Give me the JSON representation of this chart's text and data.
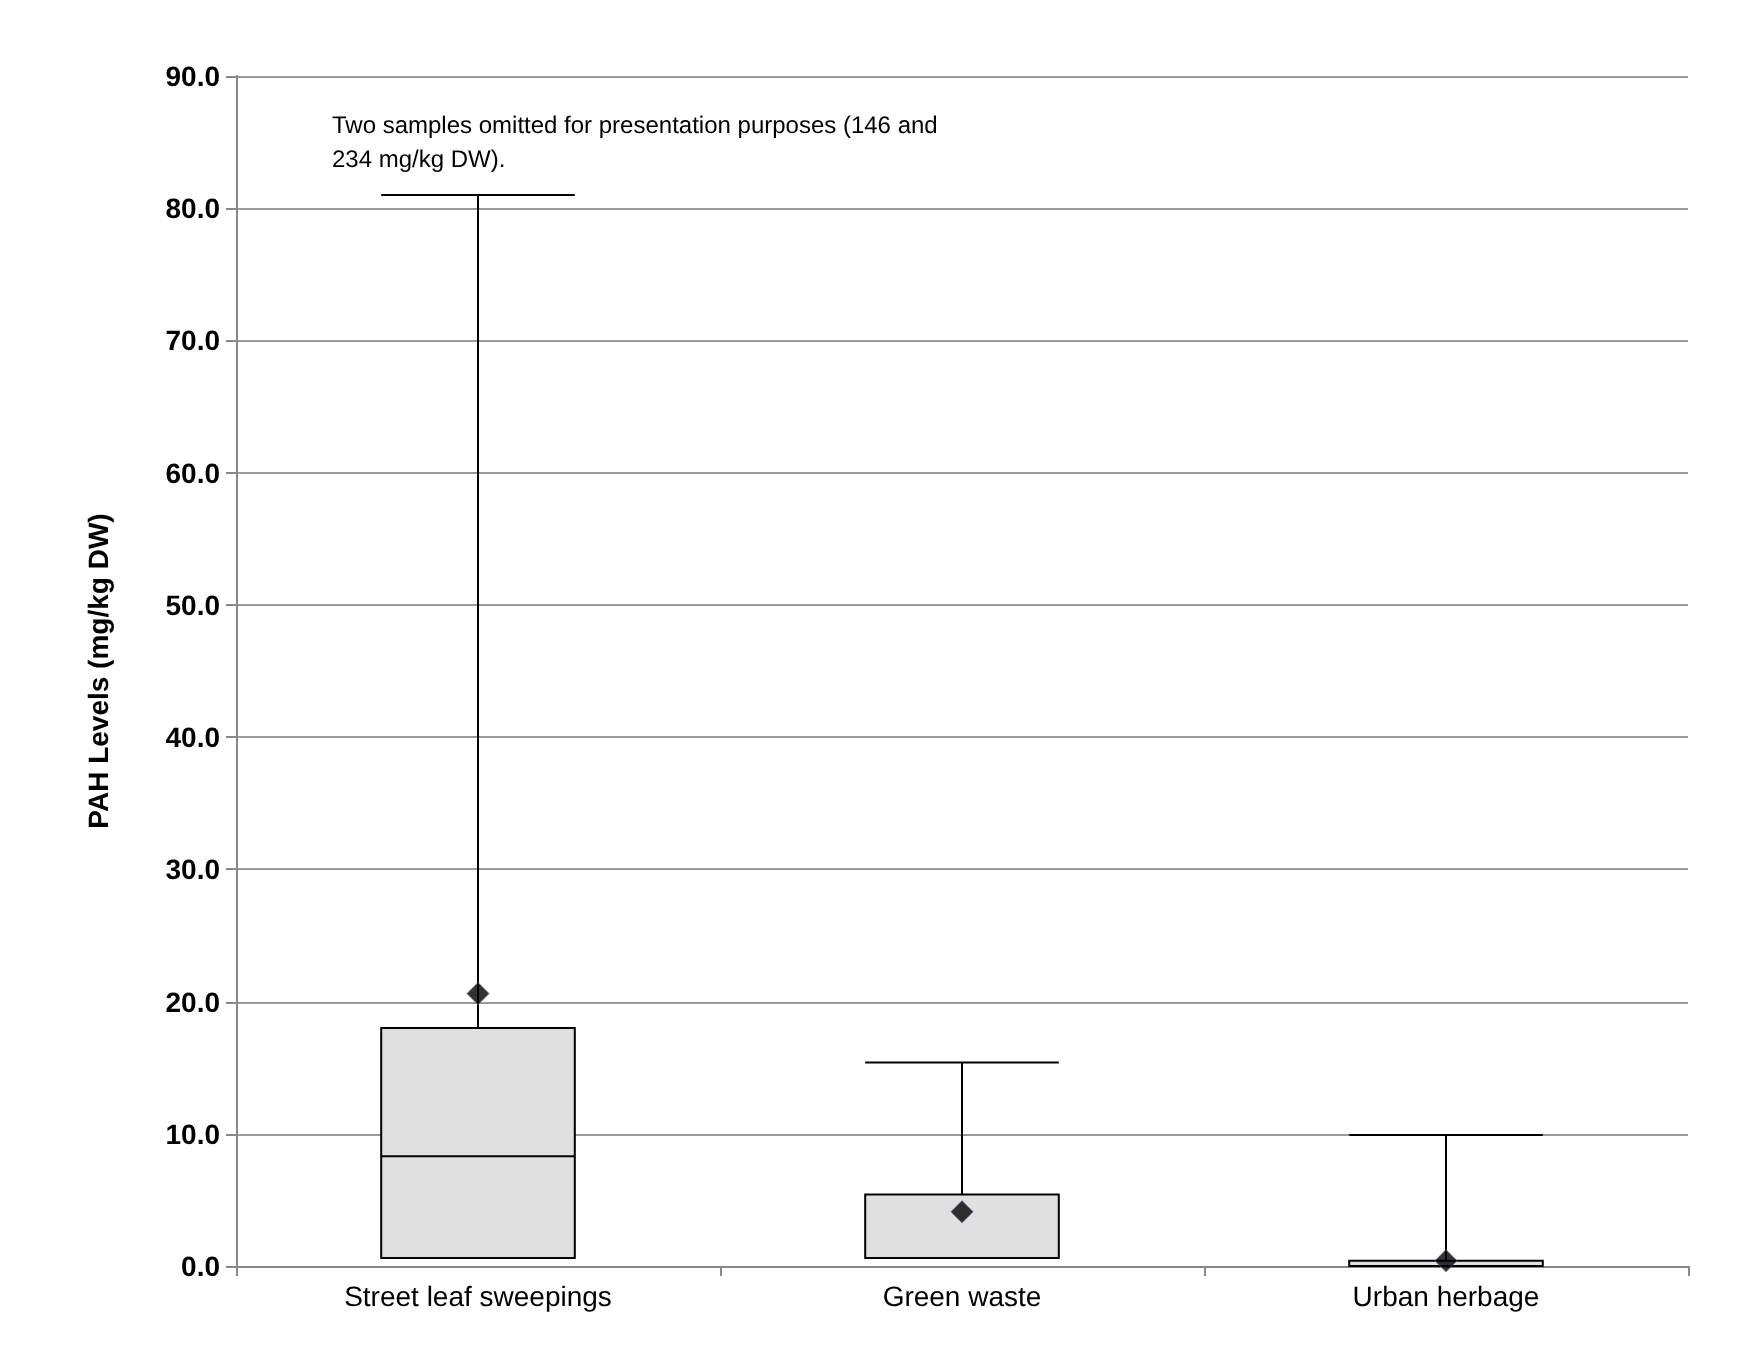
{
  "chart_data": {
    "type": "box",
    "ylabel": "PAH Levels (mg/kg DW)",
    "categories": [
      "Street leaf sweepings",
      "Green waste",
      "Urban herbage"
    ],
    "boxes": [
      {
        "low": 0.6,
        "q1": 0.6,
        "median": 8.3,
        "q3": 18.0,
        "high": 81.0,
        "mean": 20.6
      },
      {
        "low": 0.6,
        "q1": 0.6,
        "median": 0.6,
        "q3": 5.4,
        "high": 15.4,
        "mean": 4.1
      },
      {
        "low": 0.0,
        "q1": 0.0,
        "median": 0.0,
        "q3": 0.4,
        "high": 9.9,
        "mean": 0.4
      }
    ],
    "color": "#e0e0e0",
    "marker": "diamond",
    "ylim": [
      0,
      90
    ],
    "yticks": [
      {
        "value": 0,
        "label": "0.0"
      },
      {
        "value": 10,
        "label": "10.0"
      },
      {
        "value": 20,
        "label": "20.0"
      },
      {
        "value": 30,
        "label": "30.0"
      },
      {
        "value": 40,
        "label": "40.0"
      },
      {
        "value": 50,
        "label": "50.0"
      },
      {
        "value": 60,
        "label": "60.0"
      },
      {
        "value": 70,
        "label": "70.0"
      },
      {
        "value": 80,
        "label": "80.0"
      },
      {
        "value": 90,
        "label": "90.0"
      }
    ],
    "grid": "y",
    "annotations": [
      "Two samples omitted for presentation purposes (146 and 234 mg/kg DW)."
    ]
  }
}
